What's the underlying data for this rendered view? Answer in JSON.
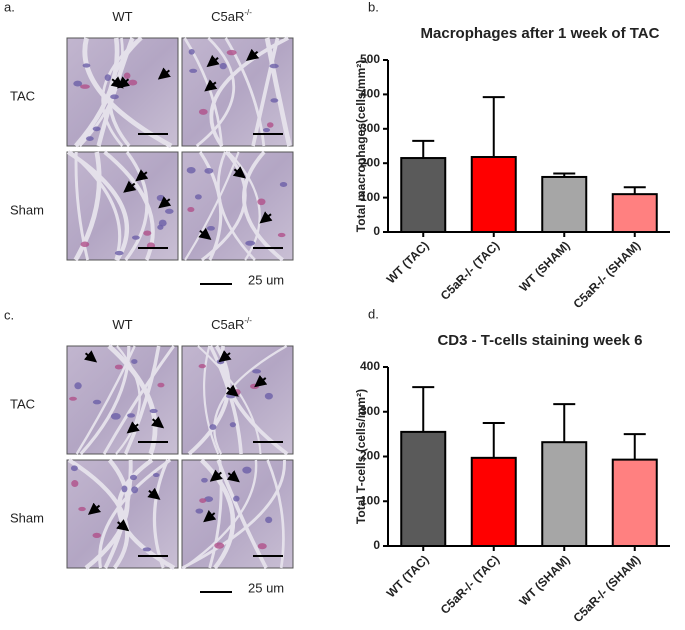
{
  "panels": [
    {
      "label": "a.",
      "columns": [
        {
          "name": "WT"
        },
        {
          "name": "C5aR",
          "sup": "-/-"
        }
      ],
      "rows": [
        "TAC",
        "Sham"
      ],
      "scale_bar": "25 um"
    },
    {
      "label": "c.",
      "columns": [
        {
          "name": "WT"
        },
        {
          "name": "C5aR",
          "sup": "-/-"
        }
      ],
      "rows": [
        "TAC",
        "Sham"
      ],
      "scale_bar": "25 um"
    }
  ],
  "chart_data": [
    {
      "type": "bar",
      "label": "b.",
      "title": "Macrophages after 1 week of  TAC",
      "y_label": "Total macrophages(cells/mm²)",
      "categories": [
        "WT (TAC)",
        "C5aR-/- (TAC)",
        "WT (SHAM)",
        "C5aR-/- (SHAM)"
      ],
      "values": [
        215,
        218,
        160,
        110
      ],
      "errors": [
        50,
        174,
        10,
        20
      ],
      "colors": [
        "#5a5a5a",
        "#ff0000",
        "#a6a6a6",
        "#ff8080"
      ],
      "ylim": [
        0,
        500
      ],
      "yticks": [
        0,
        100,
        200,
        300,
        400,
        500
      ]
    },
    {
      "type": "bar",
      "label": "d.",
      "title": "CD3 - T-cells staining week 6",
      "y_label": "Total T-cells (cells/mm²)",
      "categories": [
        "WT (TAC)",
        "C5aR-/- (TAC)",
        "WT (SHAM)",
        "C5aR-/- (SHAM)"
      ],
      "values": [
        255,
        197,
        232,
        193
      ],
      "errors": [
        100,
        78,
        85,
        57
      ],
      "colors": [
        "#5a5a5a",
        "#ff0000",
        "#a6a6a6",
        "#ff8080"
      ],
      "ylim": [
        0,
        400
      ],
      "yticks": [
        0,
        100,
        200,
        300,
        400
      ]
    }
  ]
}
